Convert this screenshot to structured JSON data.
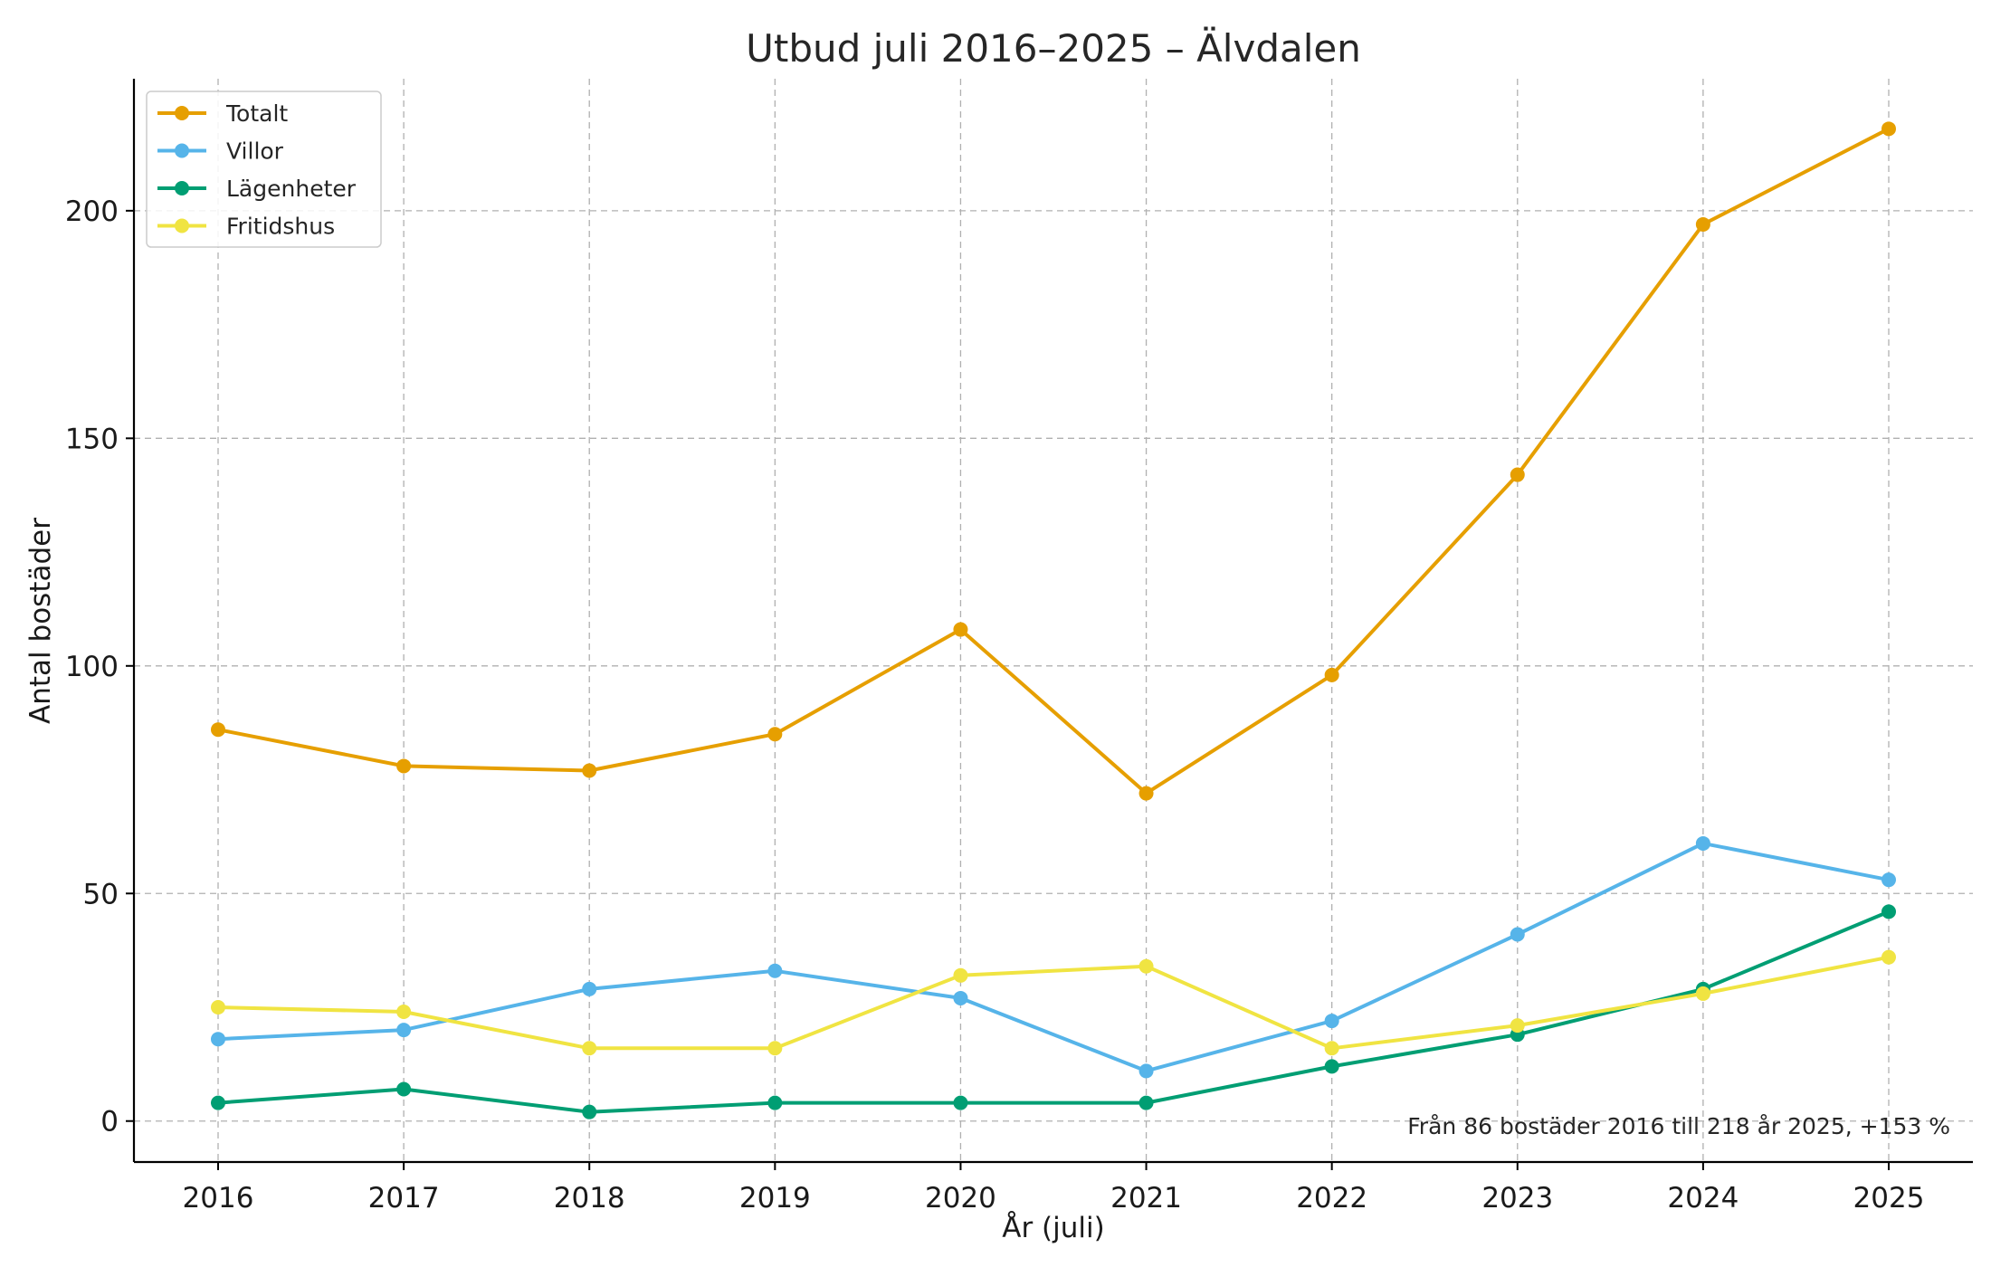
{
  "chart_data": {
    "type": "line",
    "title": "Utbud juli 2016–2025 – Älvdalen",
    "xlabel": "År (juli)",
    "ylabel": "Antal bostäder",
    "categories": [
      "2016",
      "2017",
      "2018",
      "2019",
      "2020",
      "2021",
      "2022",
      "2023",
      "2024",
      "2025"
    ],
    "yticks": [
      "0",
      "50",
      "100",
      "150",
      "200"
    ],
    "ylim": [
      -9,
      229
    ],
    "grid": true,
    "legend_position": "top-left",
    "series": [
      {
        "name": "Totalt",
        "color": "#E69F00",
        "values": [
          86,
          78,
          77,
          85,
          108,
          72,
          98,
          142,
          197,
          218
        ]
      },
      {
        "name": "Villor",
        "color": "#56B4E9",
        "values": [
          18,
          20,
          29,
          33,
          27,
          11,
          22,
          41,
          61,
          53
        ]
      },
      {
        "name": "Lägenheter",
        "color": "#009E73",
        "values": [
          4,
          7,
          2,
          4,
          4,
          4,
          12,
          19,
          29,
          46
        ]
      },
      {
        "name": "Fritidshus",
        "color": "#F0E442",
        "values": [
          25,
          24,
          16,
          16,
          32,
          34,
          16,
          21,
          28,
          36
        ]
      }
    ],
    "annotation": "Från 86 bostäder 2016 till 218 år 2025, +153 %"
  }
}
